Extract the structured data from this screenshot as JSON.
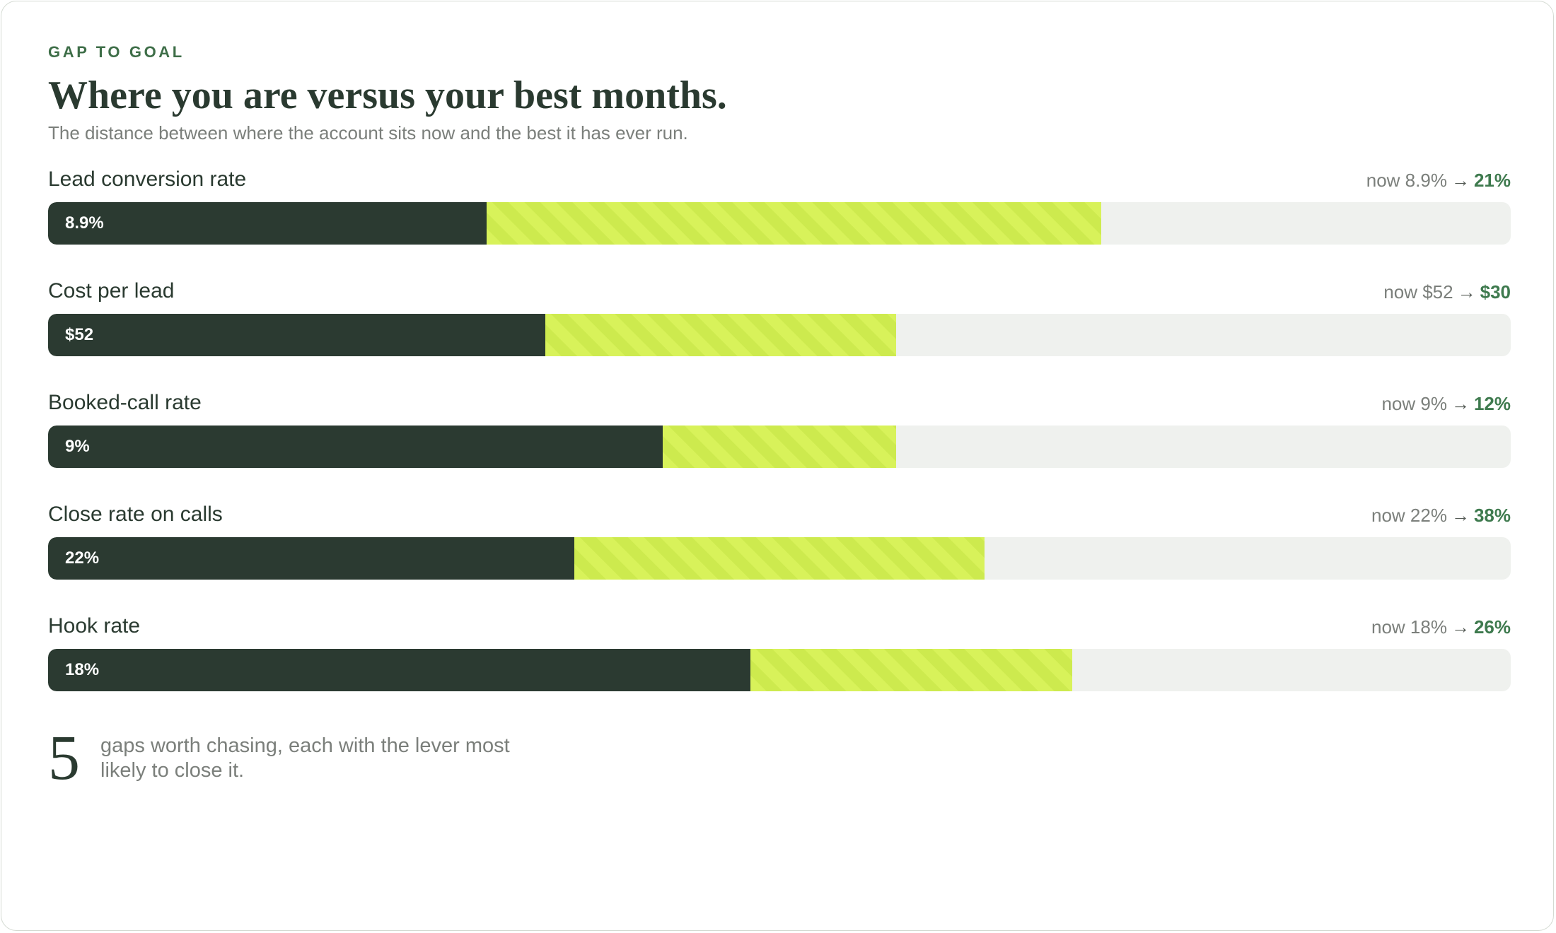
{
  "header": {
    "eyebrow": "GAP TO GOAL",
    "title": "Where you are versus your best months.",
    "subtitle": "The distance between where the account sits now and the best it has ever run."
  },
  "colors": {
    "now_fill": "#2b3a31",
    "gap_fill": "#d8f25a",
    "track": "#eff1ee",
    "accent": "#3e6e48"
  },
  "metrics": [
    {
      "label": "Lead conversion rate",
      "now_text": "now 8.9%",
      "arrow": "→",
      "best_text": "21%",
      "bar_label": "8.9%",
      "now_fraction": 0.3,
      "best_fraction": 0.72
    },
    {
      "label": "Cost per lead",
      "now_text": "now $52",
      "arrow": "→",
      "best_text": "$30",
      "bar_label": "$52",
      "now_fraction": 0.34,
      "best_fraction": 0.58
    },
    {
      "label": "Booked-call rate",
      "now_text": "now 9%",
      "arrow": "→",
      "best_text": "12%",
      "bar_label": "9%",
      "now_fraction": 0.42,
      "best_fraction": 0.58
    },
    {
      "label": "Close rate on calls",
      "now_text": "now 22%",
      "arrow": "→",
      "best_text": "38%",
      "bar_label": "22%",
      "now_fraction": 0.36,
      "best_fraction": 0.64
    },
    {
      "label": "Hook rate",
      "now_text": "now 18%",
      "arrow": "→",
      "best_text": "26%",
      "bar_label": "18%",
      "now_fraction": 0.48,
      "best_fraction": 0.7
    }
  ],
  "footer": {
    "count": "5",
    "text": "gaps worth chasing, each with the lever most likely to close it."
  }
}
